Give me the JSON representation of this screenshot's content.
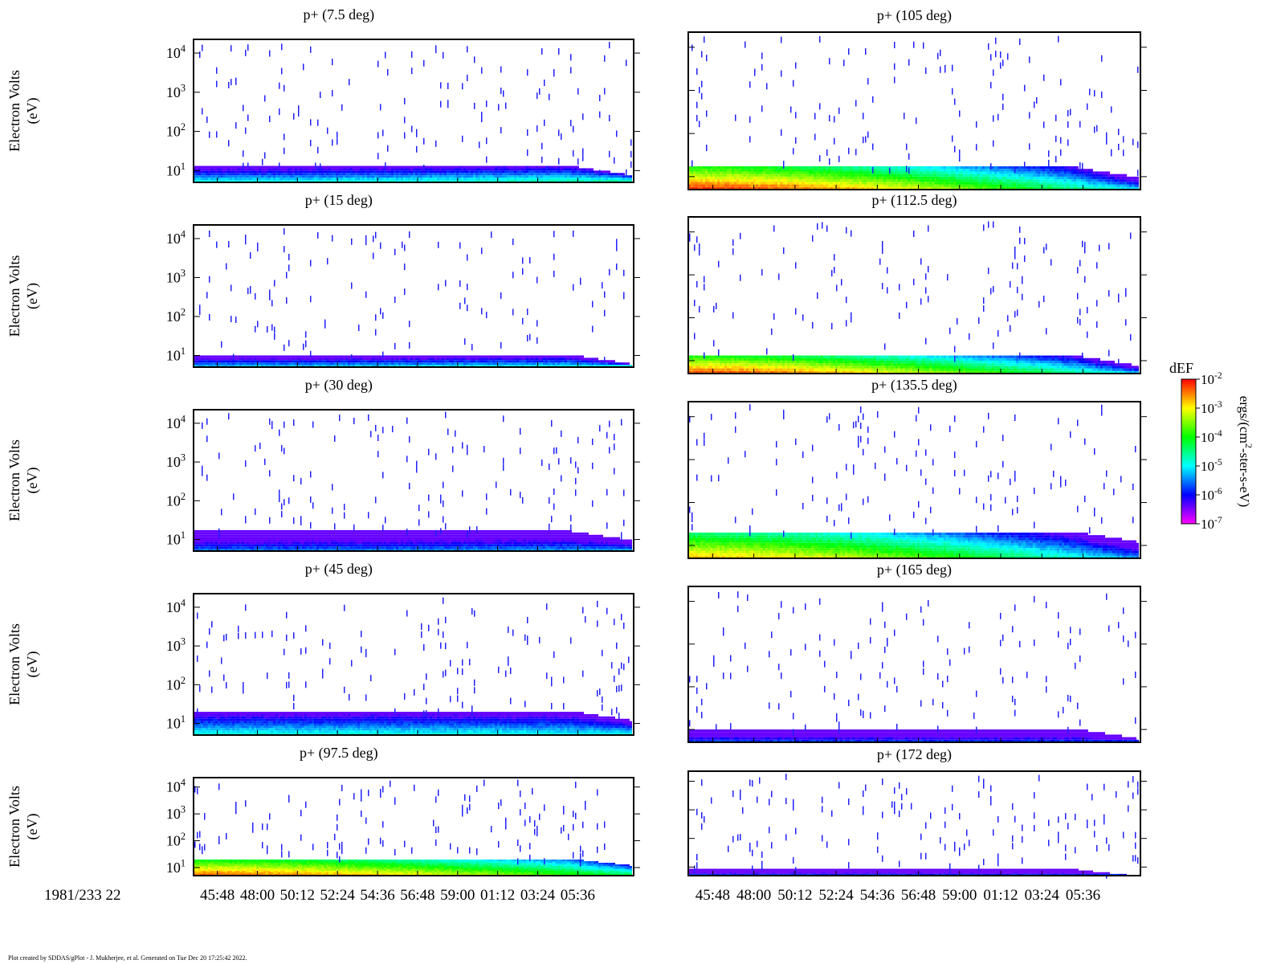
{
  "chart_data": {
    "type": "heatmap",
    "colorbar": {
      "title": "dEF",
      "units_base": "ergs/(cm",
      "units_sup": "2",
      "units_rest": "-ster-s-eV)",
      "ticks": [
        {
          "base": "10",
          "exp": "-2",
          "value": -2
        },
        {
          "base": "10",
          "exp": "-3",
          "value": -3
        },
        {
          "base": "10",
          "exp": "-4",
          "value": -4
        },
        {
          "base": "10",
          "exp": "-5",
          "value": -5
        },
        {
          "base": "10",
          "exp": "-6",
          "value": -6
        },
        {
          "base": "10",
          "exp": "-7",
          "value": -7
        }
      ],
      "colors": [
        "#ff00ff",
        "#0000ff",
        "#00ffff",
        "#00ff00",
        "#ffff00",
        "#ff0000"
      ]
    },
    "x_axis": {
      "start_label": "1981/233 22",
      "ticks": [
        "45:48",
        "48:00",
        "50:12",
        "52:24",
        "54:36",
        "56:48",
        "59:00",
        "01:12",
        "03:24",
        "05:36"
      ]
    },
    "y_axis": {
      "label": "Electron Volts",
      "unit": "(eV)",
      "scale": "log",
      "ticks": [
        {
          "base": "10",
          "exp": "1",
          "value": 1
        },
        {
          "base": "10",
          "exp": "2",
          "value": 2
        },
        {
          "base": "10",
          "exp": "3",
          "value": 3
        },
        {
          "base": "10",
          "exp": "4",
          "value": 4
        }
      ]
    },
    "panels": [
      {
        "title": "p+ (7.5 deg)",
        "band_top": 1.1,
        "peak": -5.0,
        "tail": -4.6
      },
      {
        "title": "p+ (15 deg)",
        "band_top": 1.0,
        "peak": -5.3,
        "tail": -5.0
      },
      {
        "title": "p+ (30 deg)",
        "band_top": 1.2,
        "peak": -5.6,
        "tail": -5.4
      },
      {
        "title": "p+ (45 deg)",
        "band_top": 1.3,
        "peak": -4.9,
        "tail": -5.0
      },
      {
        "title": "p+ (97.5 deg)",
        "band_top": 1.3,
        "peak": -2.4,
        "tail": -4.3
      },
      {
        "title": "p+ (105 deg)",
        "band_top": 1.2,
        "peak": -2.2,
        "tail": -5.2
      },
      {
        "title": "p+ (112.5 deg)",
        "band_top": 1.1,
        "peak": -2.3,
        "tail": -5.3
      },
      {
        "title": "p+ (135.5 deg)",
        "band_top": 1.3,
        "peak": -2.8,
        "tail": -5.5
      },
      {
        "title": "p+ (165 deg)",
        "band_top": 1.0,
        "peak": -5.8,
        "tail": -5.9
      },
      {
        "title": "p+ (172 deg)",
        "band_top": 0.9,
        "peak": -5.8,
        "tail": -5.9
      }
    ]
  },
  "footer": "Plot created by SDDAS/gPlot - J. Mukherjee, et al.  Generated on Tue Dec 20 17:25:42 2022."
}
